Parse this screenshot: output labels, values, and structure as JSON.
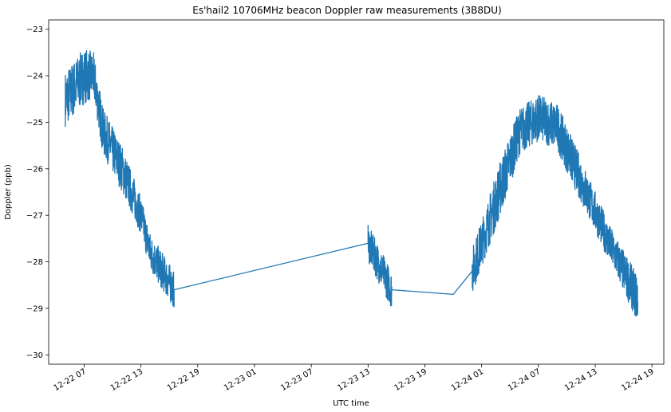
{
  "chart_data": {
    "type": "line",
    "title": "Es'hail2 10706MHz beacon Doppler raw measurements (3B8DU)",
    "xlabel": "UTC time",
    "ylabel": "Doppler (ppb)",
    "xlim": [
      "12-22 03:15",
      "12-24 20:15"
    ],
    "ylim": [
      -30.2,
      -22.8
    ],
    "xticks": [
      {
        "value": "12-22 07:00",
        "label": "12-22 07"
      },
      {
        "value": "12-22 13:00",
        "label": "12-22 13"
      },
      {
        "value": "12-22 19:00",
        "label": "12-22 19"
      },
      {
        "value": "12-23 01:00",
        "label": "12-23 01"
      },
      {
        "value": "12-23 07:00",
        "label": "12-23 07"
      },
      {
        "value": "12-23 13:00",
        "label": "12-23 13"
      },
      {
        "value": "12-23 19:00",
        "label": "12-23 19"
      },
      {
        "value": "12-24 01:00",
        "label": "12-24 01"
      },
      {
        "value": "12-24 07:00",
        "label": "12-24 07"
      },
      {
        "value": "12-24 13:00",
        "label": "12-24 13"
      },
      {
        "value": "12-24 19:00",
        "label": "12-24 19"
      }
    ],
    "yticks": [
      {
        "value": -23,
        "label": "−23"
      },
      {
        "value": -24,
        "label": "−24"
      },
      {
        "value": -25,
        "label": "−25"
      },
      {
        "value": -26,
        "label": "−26"
      },
      {
        "value": -27,
        "label": "−27"
      },
      {
        "value": -28,
        "label": "−28"
      },
      {
        "value": -29,
        "label": "−29"
      },
      {
        "value": -30,
        "label": "−30"
      }
    ],
    "color": "#1f77b4",
    "grid": false,
    "series": [
      {
        "segments": [
          {
            "x": "12-22 05:00",
            "y": -24.5,
            "noise": 0.6
          },
          {
            "x": "12-22 07:00",
            "y": -24.0,
            "noise": 0.6
          },
          {
            "x": "12-22 08:00",
            "y": -24.0,
            "noise": 0.5
          },
          {
            "x": "12-22 09:00",
            "y": -25.2,
            "noise": 0.5
          },
          {
            "x": "12-22 11:00",
            "y": -26.0,
            "noise": 0.5
          },
          {
            "x": "12-22 13:00",
            "y": -27.0,
            "noise": 0.4
          },
          {
            "x": "12-22 14:00",
            "y": -27.8,
            "noise": 0.4
          },
          {
            "x": "12-22 16:30",
            "y": -28.6,
            "noise": 0.4
          },
          {
            "x": "12-23 13:00",
            "y": -27.6,
            "noise": 0.4
          },
          {
            "x": "12-23 15:30",
            "y": -28.6,
            "noise": 0.4
          },
          {
            "x": "12-23 22:00",
            "y": -28.7,
            "noise": 0.0
          },
          {
            "x": "12-24 00:00",
            "y": -28.2,
            "noise": 0.5
          },
          {
            "x": "12-24 01:00",
            "y": -27.6,
            "noise": 0.5
          },
          {
            "x": "12-24 03:00",
            "y": -26.4,
            "noise": 0.6
          },
          {
            "x": "12-24 05:00",
            "y": -25.2,
            "noise": 0.5
          },
          {
            "x": "12-24 07:00",
            "y": -24.9,
            "noise": 0.5
          },
          {
            "x": "12-24 09:00",
            "y": -25.1,
            "noise": 0.5
          },
          {
            "x": "12-24 10:30",
            "y": -25.8,
            "noise": 0.5
          },
          {
            "x": "12-24 14:30",
            "y": -27.6,
            "noise": 0.4
          },
          {
            "x": "12-24 17:30",
            "y": -28.8,
            "noise": 0.5
          }
        ]
      }
    ]
  }
}
